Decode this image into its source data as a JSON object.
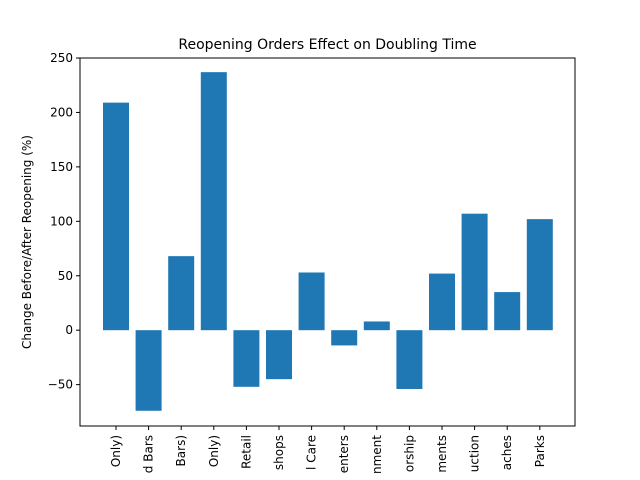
{
  "chart_data": {
    "type": "bar",
    "title": "Reopening Orders Effect on Doubling Time",
    "xlabel": "",
    "ylabel": "Change Before/After Reopening (%)",
    "ylim": [
      -88,
      250
    ],
    "yticks": [
      -50,
      0,
      50,
      100,
      150,
      200,
      250
    ],
    "grid": false,
    "bar_color": "#1f77b4",
    "categories": [
      " Only)",
      "d Bars",
      "Bars)",
      "Only)",
      "Retail",
      "shops",
      "l Care",
      "enters",
      "nment",
      "orship",
      "ments",
      "uction",
      "aches",
      "Parks"
    ],
    "values": [
      209,
      -74,
      68,
      237,
      -52,
      -45,
      53,
      -14,
      8,
      -54,
      52,
      107,
      35,
      102
    ]
  }
}
